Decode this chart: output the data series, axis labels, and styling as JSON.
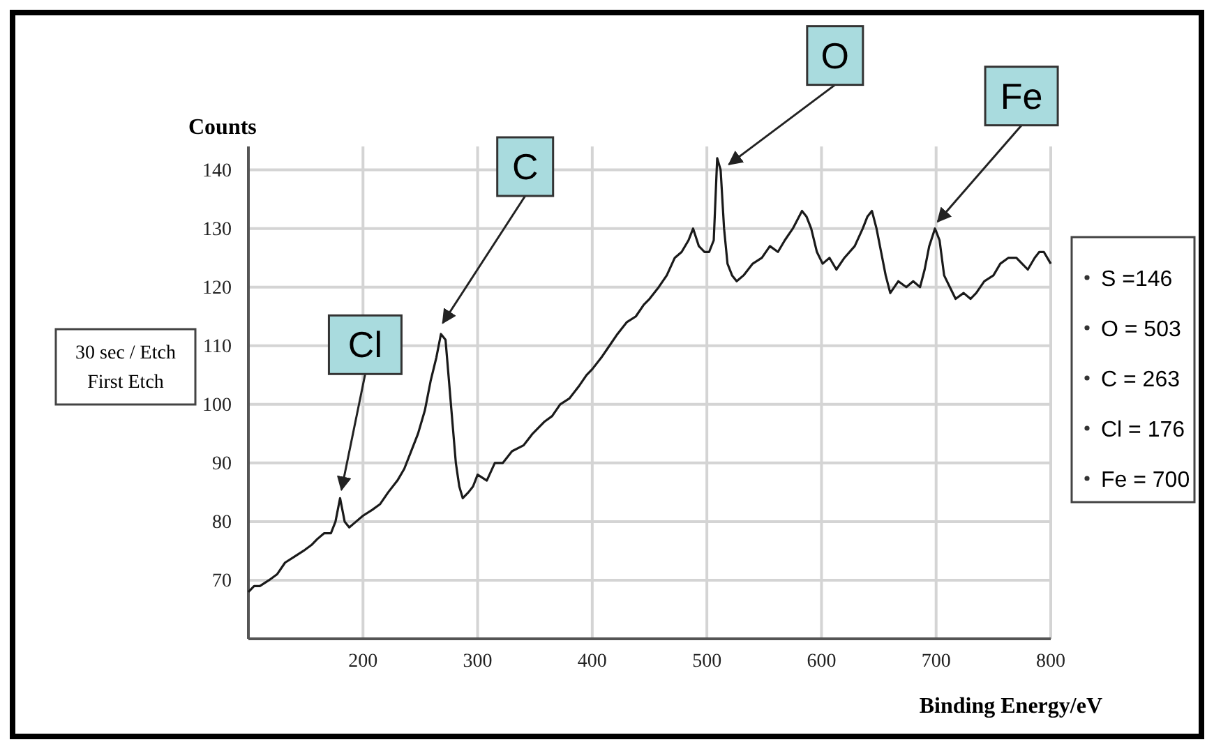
{
  "chart_data": {
    "type": "line",
    "ylabel": "Counts",
    "xlabel": "Binding Energy/eV",
    "x": [
      100,
      105,
      110,
      118,
      125,
      132,
      140,
      148,
      155,
      160,
      166,
      172,
      176,
      180,
      184,
      188,
      194,
      200,
      208,
      215,
      222,
      230,
      236,
      242,
      248,
      254,
      259,
      264,
      268,
      272,
      275,
      278,
      281,
      284,
      287,
      292,
      296,
      300,
      308,
      315,
      322,
      330,
      340,
      348,
      358,
      365,
      372,
      380,
      388,
      395,
      400,
      408,
      415,
      422,
      430,
      438,
      445,
      450,
      458,
      465,
      472,
      478,
      484,
      488,
      493,
      498,
      502,
      506,
      509,
      512,
      515,
      518,
      522,
      526,
      532,
      540,
      548,
      555,
      562,
      568,
      575,
      583,
      587,
      591,
      596,
      601,
      607,
      613,
      620,
      629,
      636,
      640,
      644,
      648,
      652,
      656,
      660,
      667,
      674,
      680,
      686,
      690,
      694,
      699,
      703,
      707,
      712,
      717,
      724,
      730,
      735,
      742,
      750,
      756,
      763,
      770,
      775,
      780,
      786,
      790,
      794,
      800
    ],
    "series": [
      {
        "color": "#1a1a1a",
        "values": [
          68,
          69,
          69,
          70,
          71,
          73,
          74,
          75,
          76,
          77,
          78,
          78,
          80,
          84,
          80,
          79,
          80,
          81,
          82,
          83,
          85,
          87,
          89,
          92,
          95,
          99,
          104,
          108,
          112,
          111,
          104,
          97,
          90,
          86,
          84,
          85,
          86,
          88,
          87,
          90,
          90,
          92,
          93,
          95,
          97,
          98,
          100,
          101,
          103,
          105,
          106,
          108,
          110,
          112,
          114,
          115,
          117,
          118,
          120,
          122,
          125,
          126,
          128,
          130,
          127,
          126,
          126,
          128,
          142,
          140,
          130,
          124,
          122,
          121,
          122,
          124,
          125,
          127,
          126,
          128,
          130,
          133,
          132,
          130,
          126,
          124,
          125,
          123,
          125,
          127,
          130,
          132,
          133,
          130,
          126,
          122,
          119,
          121,
          120,
          121,
          120,
          123,
          127,
          130,
          128,
          122,
          120,
          118,
          119,
          118,
          119,
          121,
          122,
          124,
          125,
          125,
          124,
          123,
          125,
          126,
          126,
          124
        ]
      }
    ],
    "xlim": [
      100,
      800
    ],
    "ylim": [
      60,
      144
    ],
    "xticks": [
      {
        "value": 100,
        "label": null
      },
      200,
      300,
      400,
      500,
      600,
      700,
      800
    ],
    "yticks": [
      {
        "value": 60,
        "label": null
      },
      70,
      80,
      90,
      100,
      110,
      120,
      130,
      140
    ],
    "grid": true,
    "line_style": "solid",
    "marker": "none",
    "annotations": [
      "30 sec / Etch",
      "First Etch",
      "S =146",
      "O = 503",
      "C = 263",
      "Cl = 176",
      "Fe = 700",
      {
        "text": "Cl",
        "x": 180,
        "y": 84
      },
      {
        "text": "C",
        "x": 266,
        "y": 112
      },
      {
        "text": "O",
        "x": 512,
        "y": 140
      },
      {
        "text": "Fe",
        "x": 699,
        "y": 130
      }
    ]
  }
}
